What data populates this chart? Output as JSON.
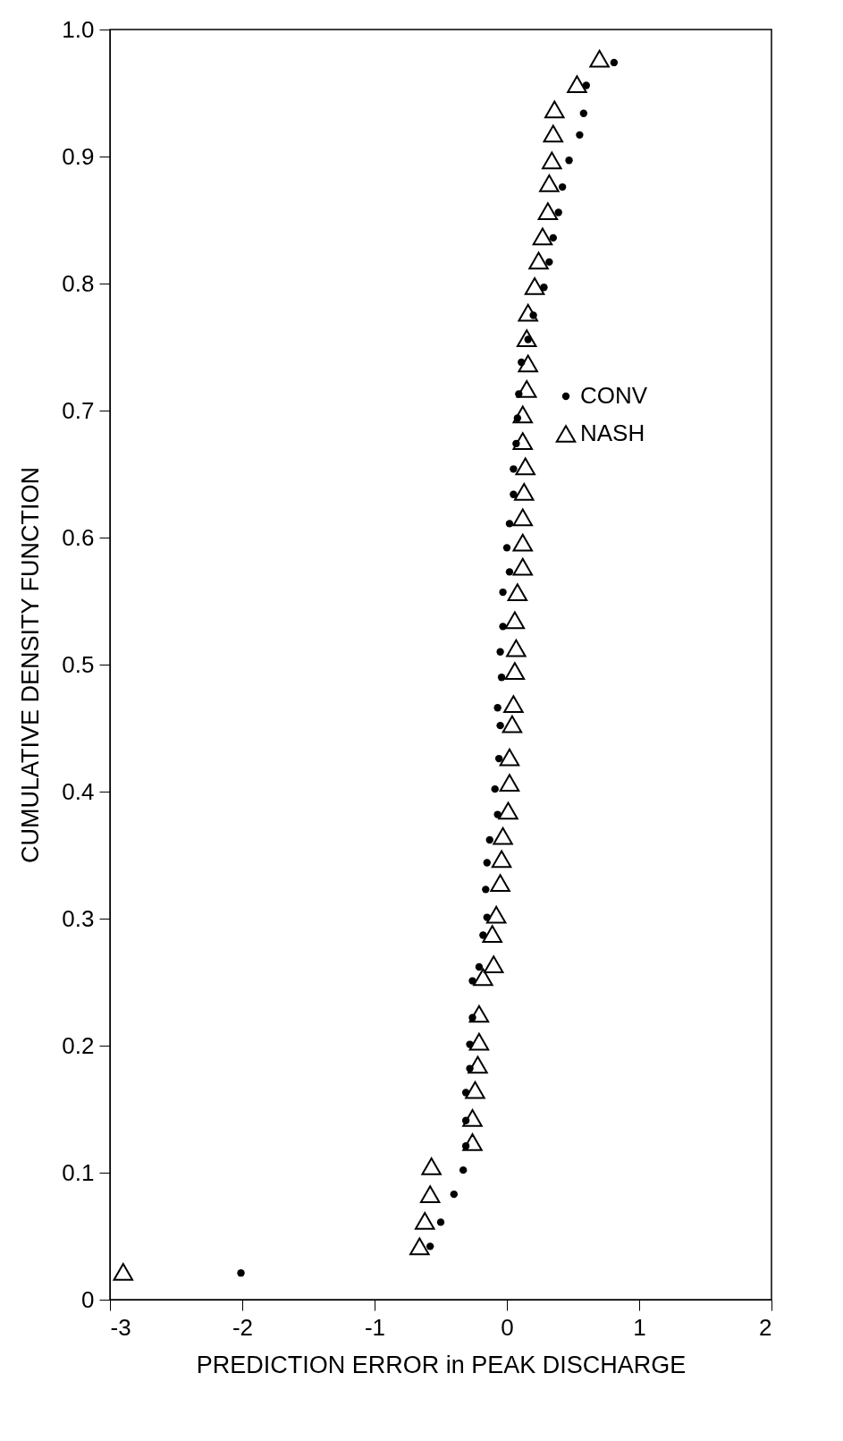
{
  "chart_data": {
    "type": "scatter",
    "xlabel": "PREDICTION ERROR in PEAK DISCHARGE",
    "ylabel": "CUMULATIVE DENSITY FUNCTION",
    "xlim": [
      -3,
      2
    ],
    "xticks": [
      -3,
      -2,
      -1,
      0,
      1,
      2
    ],
    "ylim": [
      0,
      1.0
    ],
    "yticks": [
      0,
      0.1,
      0.2,
      0.3,
      0.4,
      0.5,
      0.6,
      0.7,
      0.8,
      0.9,
      {
        "value": 1.0,
        "label": "1.0"
      }
    ],
    "grid": false,
    "legend": "right",
    "series": [
      {
        "name": "CONV",
        "color": "#000000",
        "marker": "circle",
        "x": [
          0.81,
          0.6,
          0.58,
          0.55,
          0.47,
          0.42,
          0.39,
          0.35,
          0.32,
          0.28,
          0.2,
          0.16,
          0.11,
          0.09,
          0.08,
          0.07,
          0.05,
          0.05,
          0.02,
          0.0,
          0.02,
          -0.03,
          -0.03,
          -0.05,
          -0.04,
          -0.07,
          -0.05,
          -0.06,
          -0.09,
          -0.07,
          -0.13,
          -0.15,
          -0.16,
          -0.15,
          -0.18,
          -0.21,
          -0.26,
          -0.26,
          -0.28,
          -0.28,
          -0.31,
          -0.31,
          -0.31,
          -0.33,
          -0.4,
          -0.5,
          -0.58,
          -2.01
        ],
        "values": [
          0.974,
          0.956,
          0.934,
          0.917,
          0.897,
          0.876,
          0.856,
          0.836,
          0.817,
          0.797,
          0.775,
          0.756,
          0.738,
          0.713,
          0.694,
          0.674,
          0.654,
          0.634,
          0.611,
          0.592,
          0.573,
          0.557,
          0.53,
          0.51,
          0.49,
          0.466,
          0.452,
          0.426,
          0.402,
          0.382,
          0.362,
          0.344,
          0.323,
          0.301,
          0.287,
          0.262,
          0.251,
          0.222,
          0.201,
          0.182,
          0.163,
          0.141,
          0.121,
          0.102,
          0.083,
          0.061,
          0.042,
          0.021
        ]
      },
      {
        "name": "NASH",
        "color": "#000000",
        "marker": "triangle",
        "x": [
          0.7,
          0.53,
          0.36,
          0.35,
          0.34,
          0.32,
          0.31,
          0.27,
          0.24,
          0.21,
          0.16,
          0.15,
          0.16,
          0.15,
          0.12,
          0.12,
          0.14,
          0.13,
          0.12,
          0.12,
          0.12,
          0.08,
          0.06,
          0.07,
          0.06,
          0.05,
          0.04,
          0.02,
          0.02,
          0.01,
          -0.03,
          -0.04,
          -0.05,
          -0.08,
          -0.11,
          -0.1,
          -0.18,
          -0.21,
          -0.21,
          -0.22,
          -0.24,
          -0.26,
          -0.26,
          -0.57,
          -0.58,
          -0.62,
          -0.66,
          -2.9
        ],
        "values": [
          0.977,
          0.957,
          0.937,
          0.918,
          0.897,
          0.879,
          0.857,
          0.837,
          0.818,
          0.798,
          0.777,
          0.757,
          0.737,
          0.717,
          0.697,
          0.676,
          0.656,
          0.636,
          0.616,
          0.596,
          0.577,
          0.557,
          0.535,
          0.513,
          0.495,
          0.469,
          0.453,
          0.427,
          0.407,
          0.385,
          0.365,
          0.347,
          0.328,
          0.303,
          0.288,
          0.264,
          0.254,
          0.225,
          0.203,
          0.185,
          0.165,
          0.143,
          0.124,
          0.105,
          0.083,
          0.062,
          0.042,
          0.022
        ]
      }
    ]
  }
}
